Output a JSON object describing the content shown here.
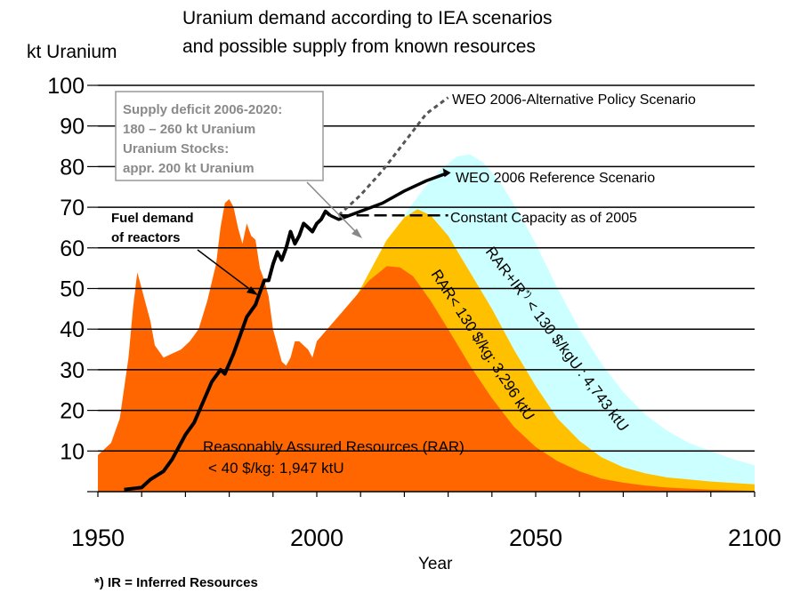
{
  "chart_data": {
    "type": "area",
    "title_lines": [
      "Uranium demand according to IEA scenarios",
      "and possible supply from known resources"
    ],
    "ylabel": "kt Uranium",
    "xlabel": "Year",
    "xlim": [
      1950,
      2100
    ],
    "ylim": [
      0,
      100
    ],
    "x_ticks": [
      "1950",
      "2000",
      "2050",
      "2100"
    ],
    "y_ticks": [
      "100",
      "90",
      "80",
      "70",
      "60",
      "50",
      "40",
      "30",
      "20",
      "10"
    ],
    "grid": "horizontal",
    "colors": {
      "production": "#ff6600",
      "rar_low": "#ff6600",
      "rar_130": "#ffc000",
      "rar_ir": "#ccffff",
      "demand": "#000000",
      "dotted": "#555555",
      "box_border": "#999999",
      "box_text": "#8a8a8a",
      "arrow_grey": "#888888"
    },
    "series": [
      {
        "key": "historical_production",
        "values": [
          [
            1950,
            9
          ],
          [
            1953,
            12
          ],
          [
            1955,
            18
          ],
          [
            1957,
            33
          ],
          [
            1958,
            45
          ],
          [
            1959,
            54
          ],
          [
            1960,
            50
          ],
          [
            1962,
            42
          ],
          [
            1963,
            36
          ],
          [
            1965,
            33
          ],
          [
            1967,
            34
          ],
          [
            1969,
            35
          ],
          [
            1971,
            37
          ],
          [
            1973,
            40
          ],
          [
            1975,
            47
          ],
          [
            1977,
            56
          ],
          [
            1978,
            65
          ],
          [
            1979,
            71
          ],
          [
            1980,
            72
          ],
          [
            1981,
            70
          ],
          [
            1982,
            65
          ],
          [
            1983,
            61
          ],
          [
            1984,
            66
          ],
          [
            1985,
            63
          ],
          [
            1986,
            62
          ],
          [
            1987,
            55
          ],
          [
            1988,
            52
          ],
          [
            1989,
            48
          ],
          [
            1990,
            40
          ],
          [
            1992,
            32
          ],
          [
            1993,
            31
          ],
          [
            1994,
            33
          ],
          [
            1995,
            37
          ],
          [
            1996,
            37
          ],
          [
            1997,
            36
          ],
          [
            1998,
            35
          ],
          [
            1999,
            33
          ],
          [
            2000,
            37
          ],
          [
            2001,
            36
          ],
          [
            2002,
            36
          ]
        ]
      },
      {
        "key": "rar_lt_40",
        "values": [
          [
            2000,
            37
          ],
          [
            2004,
            42
          ],
          [
            2008,
            47
          ],
          [
            2012,
            52
          ],
          [
            2016,
            55.5
          ],
          [
            2019,
            55.2
          ],
          [
            2022,
            53
          ],
          [
            2026,
            47
          ],
          [
            2030,
            40
          ],
          [
            2035,
            31
          ],
          [
            2040,
            23
          ],
          [
            2045,
            16
          ],
          [
            2050,
            11
          ],
          [
            2055,
            7.5
          ],
          [
            2060,
            5
          ],
          [
            2065,
            3.2
          ],
          [
            2070,
            2.2
          ],
          [
            2075,
            1.5
          ],
          [
            2080,
            1
          ],
          [
            2090,
            0.5
          ],
          [
            2100,
            0.2
          ]
        ]
      },
      {
        "key": "rar_lt_130",
        "values": [
          [
            2008,
            46
          ],
          [
            2010,
            50
          ],
          [
            2013,
            56
          ],
          [
            2016,
            62
          ],
          [
            2020,
            67.5
          ],
          [
            2023,
            69.5
          ],
          [
            2026,
            68
          ],
          [
            2030,
            63
          ],
          [
            2035,
            54
          ],
          [
            2040,
            45
          ],
          [
            2045,
            35
          ],
          [
            2050,
            26
          ],
          [
            2055,
            18
          ],
          [
            2060,
            12.5
          ],
          [
            2065,
            8.5
          ],
          [
            2070,
            6
          ],
          [
            2075,
            4.5
          ],
          [
            2080,
            3.5
          ],
          [
            2090,
            2.5
          ],
          [
            2100,
            1.8
          ]
        ]
      },
      {
        "key": "rar_ir_lt_130",
        "values": [
          [
            2020,
            68
          ],
          [
            2024,
            74
          ],
          [
            2028,
            79
          ],
          [
            2032,
            82.5
          ],
          [
            2035,
            83
          ],
          [
            2038,
            81
          ],
          [
            2042,
            76
          ],
          [
            2046,
            69
          ],
          [
            2050,
            61
          ],
          [
            2055,
            50
          ],
          [
            2060,
            40
          ],
          [
            2065,
            31.5
          ],
          [
            2070,
            24.5
          ],
          [
            2075,
            19
          ],
          [
            2080,
            15
          ],
          [
            2085,
            12
          ],
          [
            2090,
            10
          ],
          [
            2095,
            8
          ],
          [
            2100,
            6.5
          ]
        ]
      },
      {
        "key": "fuel_demand",
        "values": [
          [
            1956,
            0.5
          ],
          [
            1960,
            1
          ],
          [
            1962,
            3
          ],
          [
            1965,
            5
          ],
          [
            1967,
            8
          ],
          [
            1970,
            14
          ],
          [
            1972,
            17
          ],
          [
            1974,
            22
          ],
          [
            1976,
            27
          ],
          [
            1978,
            30
          ],
          [
            1979,
            29
          ],
          [
            1981,
            34
          ],
          [
            1983,
            40
          ],
          [
            1984,
            43
          ],
          [
            1986,
            46
          ],
          [
            1987,
            49
          ],
          [
            1988,
            52
          ],
          [
            1989,
            52
          ],
          [
            1990,
            56
          ],
          [
            1991,
            59
          ],
          [
            1992,
            57
          ],
          [
            1993,
            60
          ],
          [
            1994,
            64
          ],
          [
            1995,
            61
          ],
          [
            1996,
            63
          ],
          [
            1997,
            66
          ],
          [
            1998,
            65
          ],
          [
            1999,
            64
          ],
          [
            2000,
            66
          ],
          [
            2001,
            67
          ],
          [
            2002,
            69
          ],
          [
            2003,
            68
          ]
        ]
      },
      {
        "name": "WEO 2006 Reference Scenario",
        "key": "weo_reference",
        "values": [
          [
            2003,
            68
          ],
          [
            2005,
            67
          ],
          [
            2010,
            69
          ],
          [
            2015,
            71
          ],
          [
            2020,
            74
          ],
          [
            2025,
            76.5
          ],
          [
            2030,
            78.5
          ]
        ]
      },
      {
        "name": "WEO 2006-Alternative Policy Scenario",
        "key": "weo_alternative",
        "values": [
          [
            2005,
            68
          ],
          [
            2010,
            73
          ],
          [
            2015,
            79
          ],
          [
            2020,
            86
          ],
          [
            2025,
            93
          ],
          [
            2030,
            97
          ]
        ]
      },
      {
        "name": "Constant Capacity as of 2005",
        "key": "constant_capacity",
        "values": [
          [
            2005,
            68
          ],
          [
            2030,
            68
          ]
        ]
      }
    ],
    "annotations": {
      "deficit_box": [
        "Supply deficit 2006-2020:",
        "180 – 260 kt Uranium",
        "Uranium Stocks:",
        "appr. 200 kt Uranium"
      ],
      "fuel_demand_label": [
        "Fuel demand",
        "of reactors"
      ],
      "weo_alt_label": "WEO 2006-Alternative Policy Scenario",
      "weo_ref_label": "WEO 2006 Reference Scenario",
      "constant_label": "Constant Capacity as of 2005",
      "rar_label": [
        "Reasonably Assured Resources (RAR)",
        "< 40 $/kg: 1,947 ktU"
      ],
      "rar130_label": "RAR< 130 $/kg: 3,296 ktU",
      "rarir_label_main": "RAR+IR",
      "rarir_label_sup": "*)",
      "rarir_label_rest": " < 130 $/kgU : 4,743 ktU"
    },
    "footnote": "*) IR = Inferred Resources"
  }
}
